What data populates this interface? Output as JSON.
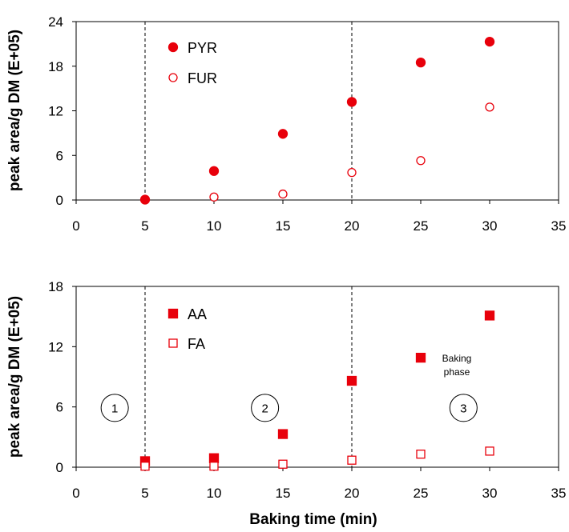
{
  "chart_data": [
    {
      "type": "scatter",
      "ylabel": "peak area/g DM (E+05)",
      "xlim": [
        0,
        35
      ],
      "ylim": [
        0,
        24
      ],
      "xticks": [
        0,
        5,
        10,
        15,
        20,
        25,
        30,
        35
      ],
      "yticks": [
        0,
        6,
        12,
        18,
        24
      ],
      "vlines": [
        5,
        20
      ],
      "legend_position": "top-left",
      "series": [
        {
          "name": "PYR",
          "marker": "circle",
          "filled": true,
          "color": "#e8000b",
          "x": [
            5,
            10,
            15,
            20,
            25,
            30
          ],
          "y": [
            0.05,
            3.9,
            8.9,
            13.2,
            18.5,
            21.3
          ]
        },
        {
          "name": "FUR",
          "marker": "circle",
          "filled": false,
          "color": "#e8000b",
          "x": [
            10,
            15,
            20,
            25,
            30
          ],
          "y": [
            0.4,
            0.8,
            3.7,
            5.3,
            12.5
          ]
        }
      ]
    },
    {
      "type": "scatter",
      "xlabel": "Baking time (min)",
      "ylabel": "peak area/g DM (E+05)",
      "xlim": [
        0,
        35
      ],
      "ylim": [
        0,
        18
      ],
      "xticks": [
        0,
        5,
        10,
        15,
        20,
        25,
        30,
        35
      ],
      "yticks": [
        0,
        6,
        12,
        18
      ],
      "vlines": [
        5,
        20
      ],
      "legend_position": "top-left",
      "annotations": {
        "phases": [
          {
            "label": "1",
            "x": 2.8,
            "y": 5.9
          },
          {
            "label": "2",
            "x": 13.7,
            "y": 5.9
          },
          {
            "label": "3",
            "x": 28.1,
            "y": 5.9
          }
        ],
        "note_lines": [
          "Baking",
          "phase"
        ]
      },
      "series": [
        {
          "name": "AA",
          "marker": "square",
          "filled": true,
          "color": "#e8000b",
          "x": [
            5,
            10,
            15,
            20,
            25,
            30
          ],
          "y": [
            0.6,
            0.9,
            3.3,
            8.6,
            10.9,
            15.1
          ]
        },
        {
          "name": "FA",
          "marker": "square",
          "filled": false,
          "color": "#e8000b",
          "x": [
            5,
            10,
            15,
            20,
            25,
            30
          ],
          "y": [
            0.1,
            0.1,
            0.3,
            0.7,
            1.3,
            1.6
          ]
        }
      ]
    }
  ]
}
